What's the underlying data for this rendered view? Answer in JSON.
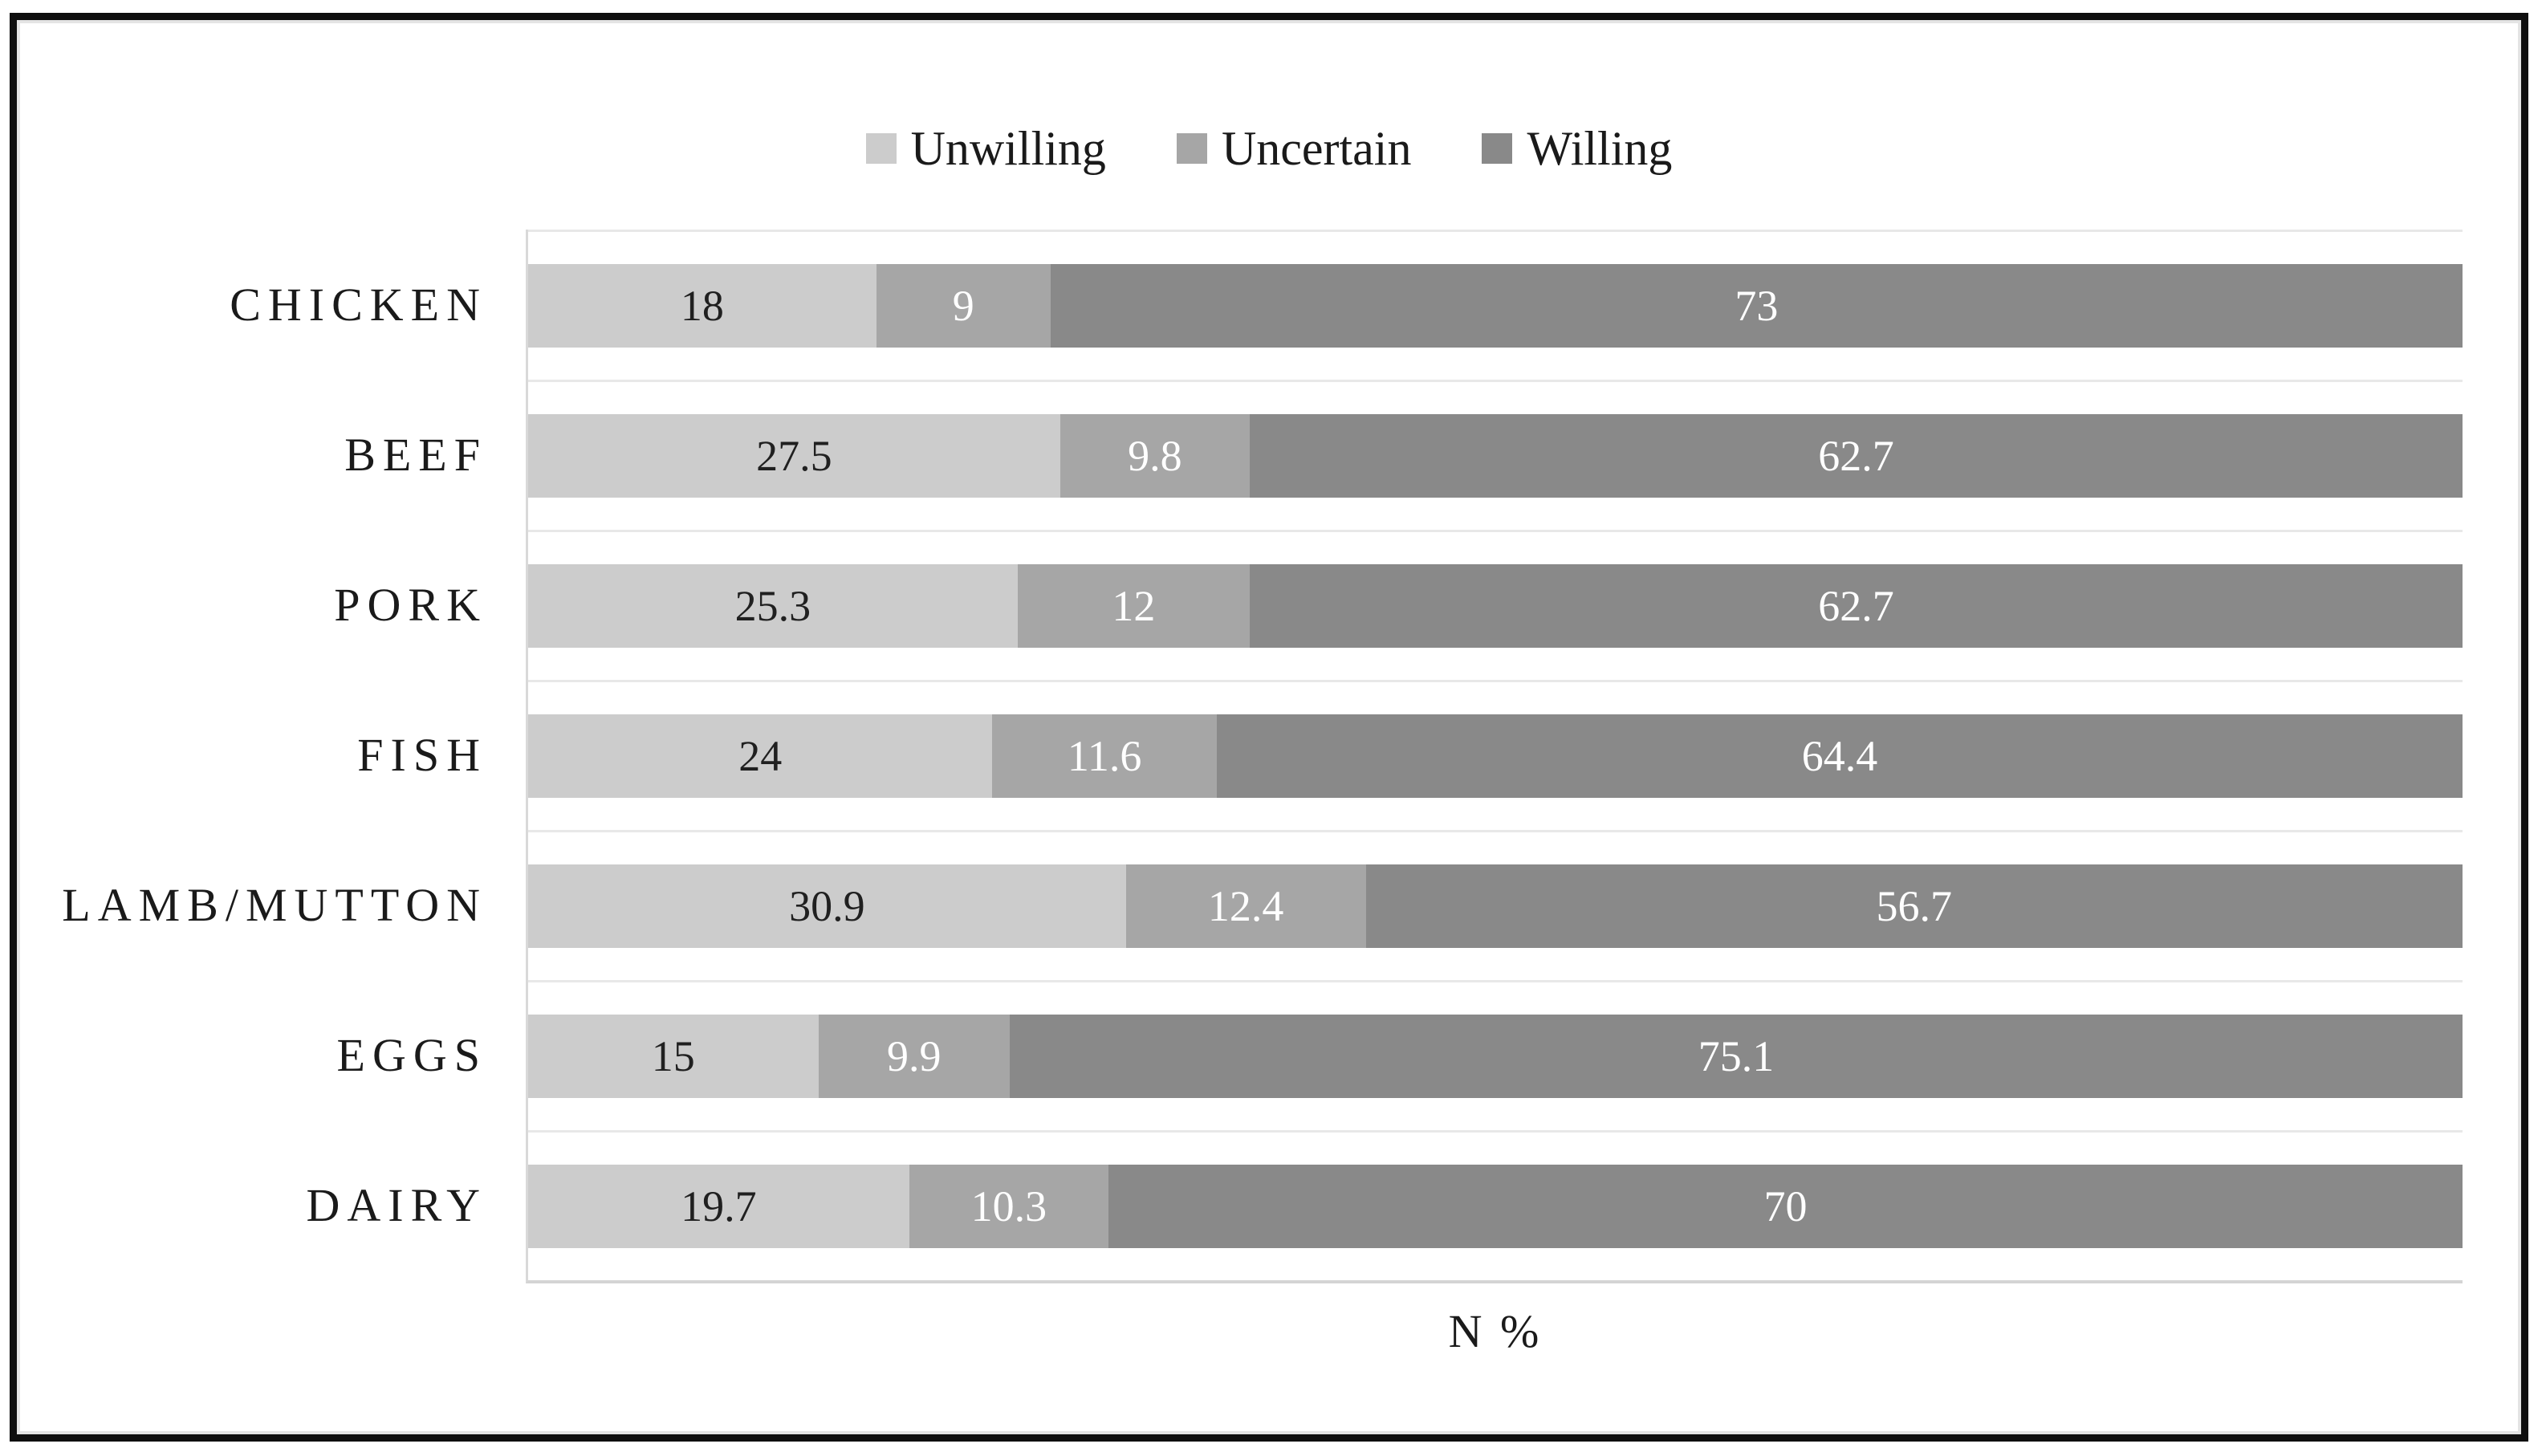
{
  "chart_data": {
    "type": "bar",
    "orientation": "horizontal",
    "stacked": true,
    "title": "",
    "xlabel": "N %",
    "ylabel": "",
    "xlim": [
      0,
      100
    ],
    "grid": true,
    "legend_position": "top",
    "categories": [
      "CHICKEN",
      "BEEF",
      "PORK",
      "FISH",
      "LAMB/MUTTON",
      "EGGS",
      "DAIRY"
    ],
    "series": [
      {
        "name": "Unwilling",
        "color": "#cccccc",
        "label_color": "#202020",
        "values": [
          18,
          27.5,
          25.3,
          24,
          30.9,
          15,
          19.7
        ]
      },
      {
        "name": "Uncertain",
        "color": "#a6a6a6",
        "label_color": "#ffffff",
        "values": [
          9,
          9.8,
          12,
          11.6,
          12.4,
          9.9,
          10.3
        ]
      },
      {
        "name": "Willing",
        "color": "#898989",
        "label_color": "#ffffff",
        "values": [
          73,
          62.7,
          62.7,
          64.4,
          56.7,
          75.1,
          70
        ]
      }
    ],
    "colors": {
      "gridline": "#e8e8e8",
      "axis_line_vertical": "#d9d9d9",
      "axis_line_bottom": "#d4d4d4",
      "frame_border": "#0f0f0f"
    }
  }
}
